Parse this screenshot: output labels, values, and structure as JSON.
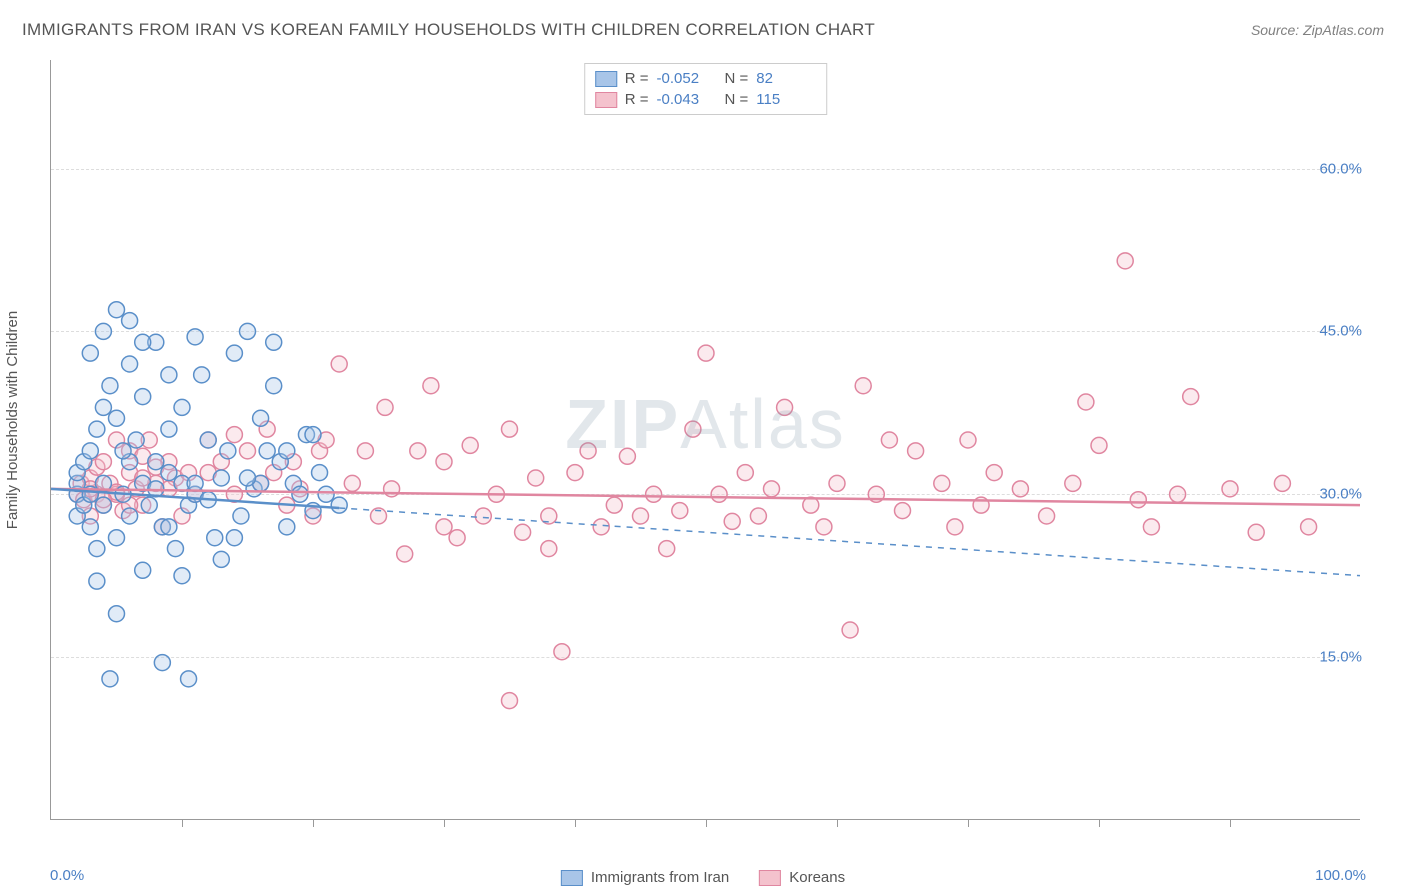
{
  "title": "IMMIGRANTS FROM IRAN VS KOREAN FAMILY HOUSEHOLDS WITH CHILDREN CORRELATION CHART",
  "source": "Source: ZipAtlas.com",
  "watermark_heavy": "ZIP",
  "watermark_light": "Atlas",
  "ylabel": "Family Households with Children",
  "chart": {
    "type": "scatter",
    "xlim": [
      0,
      100
    ],
    "ylim": [
      0,
      70
    ],
    "xlim_labels": {
      "min": "0.0%",
      "max": "100.0%"
    },
    "ytick_values": [
      15,
      30,
      45,
      60
    ],
    "ytick_labels": [
      "15.0%",
      "30.0%",
      "45.0%",
      "60.0%"
    ],
    "xtick_positions": [
      10,
      20,
      30,
      40,
      50,
      60,
      70,
      80,
      90
    ],
    "background_color": "#ffffff",
    "grid_color": "#dddddd",
    "axis_color": "#999999",
    "label_color": "#555555",
    "tick_label_color": "#4a7fc4",
    "marker_radius": 8,
    "marker_stroke_width": 1.5,
    "marker_fill_opacity": 0.35,
    "series": [
      {
        "name": "Immigrants from Iran",
        "fill": "#a8c5e8",
        "stroke": "#5a8fc9",
        "R": "-0.052",
        "N": "82",
        "trend": {
          "y_at_x0": 30.5,
          "y_at_x100": 22.5,
          "solid_until_x": 22
        },
        "points": [
          [
            2,
            30
          ],
          [
            2,
            31
          ],
          [
            2,
            32
          ],
          [
            2,
            28
          ],
          [
            2.5,
            33
          ],
          [
            2.5,
            29
          ],
          [
            3,
            34
          ],
          [
            3,
            27
          ],
          [
            3,
            30
          ],
          [
            3.5,
            36
          ],
          [
            3.5,
            25
          ],
          [
            4,
            29
          ],
          [
            4,
            31
          ],
          [
            4,
            38
          ],
          [
            4.5,
            40
          ],
          [
            4.5,
            13
          ],
          [
            5,
            37
          ],
          [
            5,
            47
          ],
          [
            5,
            26
          ],
          [
            5.5,
            30
          ],
          [
            6,
            42
          ],
          [
            6,
            33
          ],
          [
            6,
            28
          ],
          [
            6.5,
            35
          ],
          [
            7,
            23
          ],
          [
            7,
            31
          ],
          [
            7,
            39
          ],
          [
            7.5,
            29
          ],
          [
            8,
            30.5
          ],
          [
            8,
            44
          ],
          [
            8.5,
            14.5
          ],
          [
            8.5,
            27
          ],
          [
            9,
            32
          ],
          [
            9,
            36
          ],
          [
            9.5,
            25
          ],
          [
            10,
            31
          ],
          [
            10,
            22.5
          ],
          [
            10.5,
            29
          ],
          [
            10.5,
            13
          ],
          [
            11,
            30
          ],
          [
            11.5,
            41
          ],
          [
            12,
            35
          ],
          [
            12,
            29.5
          ],
          [
            12.5,
            26
          ],
          [
            13,
            31.5
          ],
          [
            13.5,
            34
          ],
          [
            14,
            43
          ],
          [
            14.5,
            28
          ],
          [
            15,
            45
          ],
          [
            15.5,
            30.5
          ],
          [
            16,
            37
          ],
          [
            16,
            31
          ],
          [
            16.5,
            34
          ],
          [
            17,
            44
          ],
          [
            17.5,
            33
          ],
          [
            18,
            27
          ],
          [
            18.5,
            31
          ],
          [
            19,
            30
          ],
          [
            19.5,
            35.5
          ],
          [
            20,
            28.5
          ],
          [
            20.5,
            32
          ],
          [
            21,
            30
          ],
          [
            22,
            29
          ],
          [
            11,
            44.5
          ],
          [
            5,
            19
          ],
          [
            4,
            45
          ],
          [
            6,
            46
          ],
          [
            8,
            33
          ],
          [
            9,
            41
          ],
          [
            3,
            43
          ],
          [
            7,
            44
          ],
          [
            14,
            26
          ],
          [
            10,
            38
          ],
          [
            13,
            24
          ],
          [
            15,
            31.5
          ],
          [
            17,
            40
          ],
          [
            18,
            34
          ],
          [
            3.5,
            22
          ],
          [
            5.5,
            34
          ],
          [
            9,
            27
          ],
          [
            11,
            31
          ],
          [
            20,
            35.5
          ]
        ]
      },
      {
        "name": "Koreans",
        "fill": "#f4c2cd",
        "stroke": "#e086a0",
        "R": "-0.043",
        "N": "115",
        "trend": {
          "y_at_x0": 30.5,
          "y_at_x100": 29
        },
        "points": [
          [
            2,
            30
          ],
          [
            2.3,
            31
          ],
          [
            2.5,
            29.5
          ],
          [
            3,
            31.5
          ],
          [
            3,
            28
          ],
          [
            3.5,
            32.5
          ],
          [
            3.5,
            30
          ],
          [
            4,
            29
          ],
          [
            4,
            33
          ],
          [
            4.5,
            31
          ],
          [
            5,
            30
          ],
          [
            5,
            35
          ],
          [
            5.5,
            28.5
          ],
          [
            6,
            32
          ],
          [
            6,
            34
          ],
          [
            6.5,
            30.5
          ],
          [
            7,
            33.5
          ],
          [
            7,
            29
          ],
          [
            7.5,
            35
          ],
          [
            8,
            31
          ],
          [
            8.5,
            27
          ],
          [
            9,
            33
          ],
          [
            9.5,
            31.5
          ],
          [
            10,
            28
          ],
          [
            10.5,
            32
          ],
          [
            11,
            30
          ],
          [
            12,
            35
          ],
          [
            12,
            32
          ],
          [
            13,
            33
          ],
          [
            14,
            30
          ],
          [
            14,
            35.5
          ],
          [
            15,
            34
          ],
          [
            16,
            31
          ],
          [
            16.5,
            36
          ],
          [
            17,
            32
          ],
          [
            18,
            29
          ],
          [
            18.5,
            33
          ],
          [
            19,
            30.5
          ],
          [
            20,
            28
          ],
          [
            20.5,
            34
          ],
          [
            21,
            35
          ],
          [
            22,
            42
          ],
          [
            23,
            31
          ],
          [
            24,
            34
          ],
          [
            25,
            28
          ],
          [
            25.5,
            38
          ],
          [
            26,
            30.5
          ],
          [
            27,
            24.5
          ],
          [
            28,
            34
          ],
          [
            29,
            40
          ],
          [
            30,
            27
          ],
          [
            30,
            33
          ],
          [
            31,
            26
          ],
          [
            32,
            34.5
          ],
          [
            33,
            28
          ],
          [
            34,
            30
          ],
          [
            35,
            36
          ],
          [
            35,
            11
          ],
          [
            36,
            26.5
          ],
          [
            37,
            31.5
          ],
          [
            38,
            25
          ],
          [
            38,
            28
          ],
          [
            39,
            15.5
          ],
          [
            40,
            32
          ],
          [
            41,
            34
          ],
          [
            42,
            27
          ],
          [
            43,
            29
          ],
          [
            44,
            33.5
          ],
          [
            45,
            28
          ],
          [
            46,
            30
          ],
          [
            47,
            25
          ],
          [
            48,
            28.5
          ],
          [
            49,
            36
          ],
          [
            50,
            43
          ],
          [
            51,
            30
          ],
          [
            52,
            27.5
          ],
          [
            53,
            32
          ],
          [
            54,
            28
          ],
          [
            55,
            30.5
          ],
          [
            56,
            38
          ],
          [
            58,
            29
          ],
          [
            59,
            27
          ],
          [
            60,
            31
          ],
          [
            61,
            17.5
          ],
          [
            62,
            40
          ],
          [
            63,
            30
          ],
          [
            64,
            35
          ],
          [
            65,
            28.5
          ],
          [
            66,
            34
          ],
          [
            68,
            31
          ],
          [
            69,
            27
          ],
          [
            70,
            35
          ],
          [
            71,
            29
          ],
          [
            72,
            32
          ],
          [
            74,
            30.5
          ],
          [
            76,
            28
          ],
          [
            78,
            31
          ],
          [
            79,
            38.5
          ],
          [
            80,
            34.5
          ],
          [
            82,
            51.5
          ],
          [
            83,
            29.5
          ],
          [
            84,
            27
          ],
          [
            86,
            30
          ],
          [
            87,
            39
          ],
          [
            90,
            30.5
          ],
          [
            92,
            26.5
          ],
          [
            94,
            31
          ],
          [
            96,
            27
          ],
          [
            5,
            30.2
          ],
          [
            4,
            29.5
          ],
          [
            3,
            30.5
          ],
          [
            6,
            29
          ],
          [
            8,
            32.5
          ],
          [
            7,
            31.5
          ],
          [
            9,
            30.5
          ]
        ]
      }
    ]
  },
  "stat_legend_labels": {
    "R": "R =",
    "N": "N ="
  },
  "bottom_legend": [
    {
      "label": "Immigrants from Iran",
      "fill": "#a8c5e8",
      "stroke": "#5a8fc9"
    },
    {
      "label": "Koreans",
      "fill": "#f4c2cd",
      "stroke": "#e086a0"
    }
  ]
}
